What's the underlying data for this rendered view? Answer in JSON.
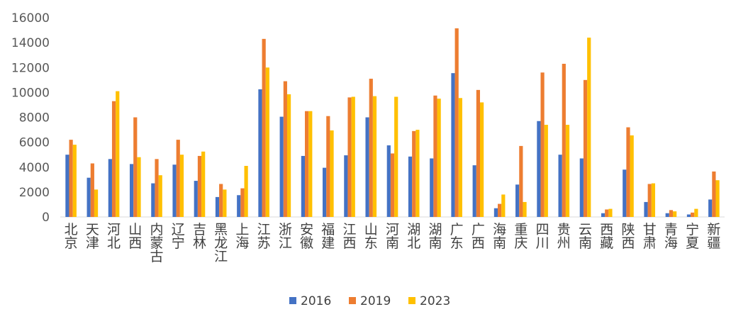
{
  "chart_data": {
    "type": "bar",
    "categories": [
      "北京",
      "天津",
      "河北",
      "山西",
      "内蒙古",
      "辽宁",
      "吉林",
      "黑龙江",
      "上海",
      "江苏",
      "浙江",
      "安徽",
      "福建",
      "江西",
      "山东",
      "河南",
      "湖北",
      "湖南",
      "广东",
      "广西",
      "海南",
      "重庆",
      "四川",
      "贵州",
      "云南",
      "西藏",
      "陕西",
      "甘肃",
      "青海",
      "宁夏",
      "新疆"
    ],
    "series": [
      {
        "name": "2016",
        "color": "#4472C4",
        "values": [
          5000,
          3150,
          4650,
          4250,
          2700,
          4200,
          2900,
          1600,
          1750,
          10250,
          8050,
          4900,
          3950,
          4950,
          8000,
          5750,
          4850,
          4700,
          11550,
          4150,
          700,
          2600,
          7700,
          5000,
          4700,
          300,
          3800,
          1200,
          300,
          200,
          1400
        ]
      },
      {
        "name": "2019",
        "color": "#ED7D31",
        "values": [
          6200,
          4300,
          9300,
          8000,
          4650,
          6200,
          4900,
          2650,
          2300,
          14300,
          10900,
          8500,
          8100,
          9600,
          11100,
          5100,
          6900,
          9750,
          15150,
          10200,
          1050,
          5700,
          11600,
          12300,
          11000,
          600,
          7200,
          2650,
          550,
          350,
          3650
        ]
      },
      {
        "name": "2023",
        "color": "#FFC000",
        "values": [
          5800,
          2200,
          10100,
          4800,
          3350,
          5000,
          5250,
          2200,
          4100,
          12000,
          9850,
          8500,
          6950,
          9650,
          9700,
          9650,
          7000,
          9500,
          9550,
          9200,
          1800,
          1200,
          7400,
          7400,
          14400,
          650,
          6550,
          2700,
          450,
          650,
          2950
        ]
      }
    ],
    "ylim": [
      0,
      16000
    ],
    "yticks": [
      "0",
      "2000",
      "4000",
      "6000",
      "8000",
      "10000",
      "12000",
      "14000",
      "16000"
    ],
    "legend_position": "bottom",
    "grid": false
  }
}
